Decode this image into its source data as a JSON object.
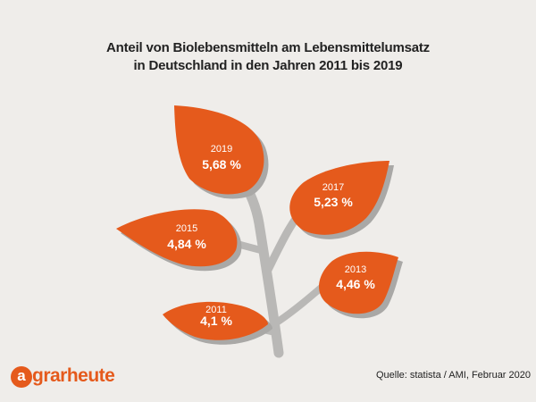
{
  "title_line1": "Anteil von Biolebensmitteln am Lebensmittelumsatz",
  "title_line2": "in Deutschland in den Jahren 2011 bis 2019",
  "source": "Quelle: statista / AMI, Februar 2020",
  "logo": {
    "initial": "a",
    "text": "grarheute"
  },
  "colors": {
    "leaf": "#e55a1c",
    "shadow": "#a9a8a6",
    "stem": "#b9b8b6",
    "background": "#efedea"
  },
  "chart_data": {
    "type": "bar",
    "title": "Anteil von Biolebensmitteln am Lebensmittelumsatz in Deutschland in den Jahren 2011 bis 2019",
    "categories": [
      "2011",
      "2013",
      "2015",
      "2017",
      "2019"
    ],
    "values": [
      4.1,
      4.46,
      4.84,
      5.23,
      5.68
    ],
    "value_labels": [
      "4,1 %",
      "4,46 %",
      "4,84 %",
      "5,23 %",
      "5,68 %"
    ],
    "unit": "%"
  }
}
